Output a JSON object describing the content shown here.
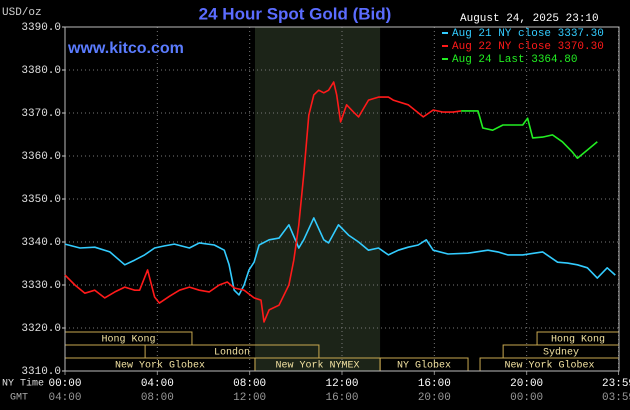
{
  "chart_data": {
    "type": "line",
    "title": "24 Hour Spot Gold (Bid)",
    "website": "www.kitco.com",
    "unit_label": "USD/oz",
    "timestamp": "August 24, 2025 23:10",
    "x_row_label": "NY Time",
    "x2_row_label": "GMT",
    "xlim": [
      0,
      24
    ],
    "xticks": [
      {
        "value": 0,
        "label": "00:00"
      },
      {
        "value": 4,
        "label": "04:00"
      },
      {
        "value": 8,
        "label": "08:00"
      },
      {
        "value": 12,
        "label": "12:00"
      },
      {
        "value": 16,
        "label": "16:00"
      },
      {
        "value": 20,
        "label": "20:00"
      },
      {
        "value": 23.98,
        "label": "23:59"
      }
    ],
    "x2ticks": [
      {
        "value": 0,
        "label": "04:00"
      },
      {
        "value": 4,
        "label": "08:00"
      },
      {
        "value": 8,
        "label": "12:00"
      },
      {
        "value": 12,
        "label": "16:00"
      },
      {
        "value": 16,
        "label": "20:00"
      },
      {
        "value": 20,
        "label": "00:00"
      },
      {
        "value": 23.98,
        "label": "03:59"
      }
    ],
    "ylim": [
      3310,
      3390
    ],
    "yticks": [
      {
        "value": 3310,
        "label": "3310.0"
      },
      {
        "value": 3320,
        "label": "3320.0"
      },
      {
        "value": 3330,
        "label": "3330.0"
      },
      {
        "value": 3340,
        "label": "3340.0"
      },
      {
        "value": 3350,
        "label": "3350.0"
      },
      {
        "value": 3360,
        "label": "3360.0"
      },
      {
        "value": 3370,
        "label": "3370.0"
      },
      {
        "value": 3380,
        "label": "3380.0"
      },
      {
        "value": 3390,
        "label": "3390.0"
      }
    ],
    "grid": true,
    "shaded_range": [
      8.23,
      13.65
    ],
    "session_rows": [
      [
        {
          "label": "Hong Kong",
          "start": 0,
          "end": 5.5
        },
        {
          "label": "Hong Kong",
          "start": 20.45,
          "end": 24
        }
      ],
      [
        {
          "label": "London",
          "start": 3.47,
          "end": 11
        },
        {
          "label": "Sydney",
          "start": 18.98,
          "end": 24
        }
      ],
      [
        {
          "label": "New York Globex",
          "start": 0,
          "end": 8.23
        },
        {
          "label": "New York NYMEX",
          "start": 8.23,
          "end": 13.65
        },
        {
          "label": "NY Globex",
          "start": 13.65,
          "end": 17.46
        },
        {
          "label": "New York Globex",
          "start": 17.98,
          "end": 24
        }
      ]
    ],
    "series": [
      {
        "name": "Aug 21 NY close 3337.30",
        "color": "#33ccff",
        "x": [
          0,
          0.65,
          1.29,
          1.94,
          2.59,
          3.02,
          3.45,
          3.88,
          4.31,
          4.74,
          5.39,
          5.82,
          6.47,
          6.9,
          7.11,
          7.33,
          7.54,
          7.76,
          7.97,
          8.19,
          8.41,
          8.84,
          9.27,
          9.7,
          10.13,
          10.34,
          10.78,
          11.21,
          11.42,
          11.85,
          12.28,
          12.72,
          13.15,
          13.58,
          14.01,
          14.44,
          14.87,
          15.3,
          15.65,
          15.95,
          16.59,
          17.46,
          18.32,
          18.75,
          19.18,
          19.83,
          20.69,
          21.34,
          21.77,
          22.2,
          22.63,
          23.06,
          23.49,
          23.84
        ],
        "values": [
          3339.5,
          3338.6,
          3338.8,
          3337.7,
          3334.7,
          3335.8,
          3337.0,
          3338.6,
          3339.1,
          3339.5,
          3338.6,
          3339.8,
          3339.3,
          3338.1,
          3334.7,
          3328.8,
          3327.7,
          3330.0,
          3333.5,
          3335.3,
          3339.3,
          3340.5,
          3340.9,
          3344.0,
          3338.6,
          3340.5,
          3345.6,
          3340.5,
          3339.8,
          3344.0,
          3341.6,
          3340.0,
          3338.1,
          3338.6,
          3337.0,
          3338.1,
          3338.8,
          3339.3,
          3340.5,
          3338.1,
          3337.2,
          3337.4,
          3338.1,
          3337.7,
          3337.0,
          3337.0,
          3337.7,
          3335.3,
          3335.1,
          3334.7,
          3334.0,
          3331.6,
          3334.0,
          3332.3
        ]
      },
      {
        "name": "Aug 22 NY close 3370.30",
        "color": "#ff1a1a",
        "x": [
          0,
          0.43,
          0.86,
          1.29,
          1.72,
          2.16,
          2.59,
          3.02,
          3.23,
          3.58,
          3.88,
          4.09,
          4.53,
          4.96,
          5.39,
          5.82,
          6.25,
          6.68,
          7.03,
          7.33,
          7.76,
          8.19,
          8.49,
          8.62,
          8.84,
          9.27,
          9.7,
          9.91,
          10.13,
          10.34,
          10.56,
          10.78,
          10.99,
          11.21,
          11.42,
          11.64,
          11.77,
          11.94,
          12.2,
          12.5,
          12.72,
          13.15,
          13.58,
          14.01,
          14.22,
          14.87,
          15.52,
          15.95,
          16.38,
          16.81,
          17.16
        ],
        "values": [
          3332.3,
          3330.0,
          3328.1,
          3328.8,
          3327.0,
          3328.4,
          3329.5,
          3328.8,
          3328.8,
          3333.5,
          3327.2,
          3325.8,
          3327.4,
          3328.8,
          3329.5,
          3328.8,
          3328.4,
          3330.0,
          3330.7,
          3329.3,
          3328.8,
          3327.0,
          3326.5,
          3321.4,
          3324.2,
          3325.3,
          3330.0,
          3335.8,
          3344.0,
          3355.6,
          3369.5,
          3374.2,
          3375.3,
          3374.7,
          3375.3,
          3377.2,
          3374.2,
          3367.9,
          3371.9,
          3370.2,
          3369.1,
          3373.0,
          3373.7,
          3373.7,
          3373.0,
          3371.9,
          3369.1,
          3370.7,
          3370.2,
          3370.2,
          3370.5
        ]
      },
      {
        "name": "Aug 24 Last 3364.80",
        "color": "#22ee22",
        "x": [
          17.16,
          17.89,
          18.1,
          18.53,
          18.97,
          19.4,
          19.83,
          20.04,
          20.26,
          20.69,
          21.12,
          21.55,
          21.98,
          22.2,
          22.63,
          23.06
        ],
        "values": [
          3370.5,
          3370.5,
          3366.5,
          3366.0,
          3367.2,
          3367.2,
          3367.2,
          3368.8,
          3364.2,
          3364.4,
          3364.9,
          3363.3,
          3360.9,
          3359.5,
          3361.4,
          3363.3
        ]
      }
    ]
  }
}
